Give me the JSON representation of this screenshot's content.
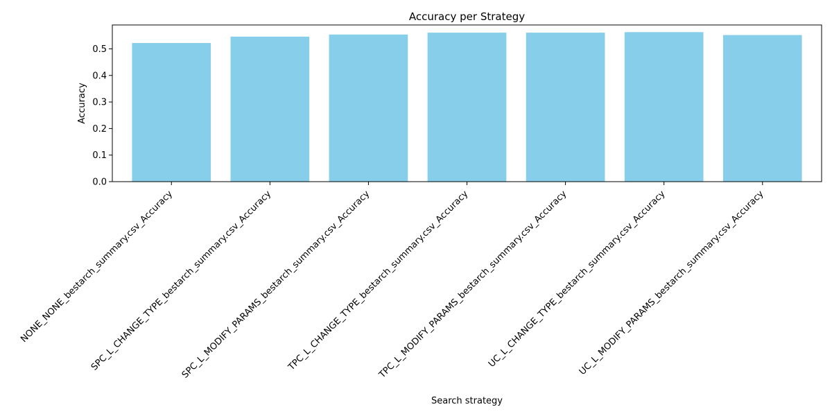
{
  "chart_data": {
    "type": "bar",
    "title": "Accuracy per Strategy",
    "xlabel": "Search strategy",
    "ylabel": "Accuracy",
    "categories": [
      "NONE_NONE_bestarch_summary.csv_Accuracy",
      "SPC_L_CHANGE_TYPE_bestarch_summary.csv_Accuracy",
      "SPC_L_MODIFY_PARAMS_bestarch_summary.csv_Accuracy",
      "TPC_L_CHANGE_TYPE_bestarch_summary.csv_Accuracy",
      "TPC_L_MODIFY_PARAMS_bestarch_summary.csv_Accuracy",
      "UC_L_CHANGE_TYPE_bestarch_summary.csv_Accuracy",
      "UC_L_MODIFY_PARAMS_bestarch_summary.csv_Accuracy"
    ],
    "values": [
      0.522,
      0.546,
      0.554,
      0.561,
      0.561,
      0.563,
      0.552
    ],
    "ylim": [
      0,
      0.59
    ],
    "yticks": [
      0.0,
      0.1,
      0.2,
      0.3,
      0.4,
      0.5
    ],
    "ytick_labels": [
      "0.0",
      "0.1",
      "0.2",
      "0.3",
      "0.4",
      "0.5"
    ],
    "bar_color": "#87CEEB",
    "grid": false,
    "legend": "none"
  }
}
